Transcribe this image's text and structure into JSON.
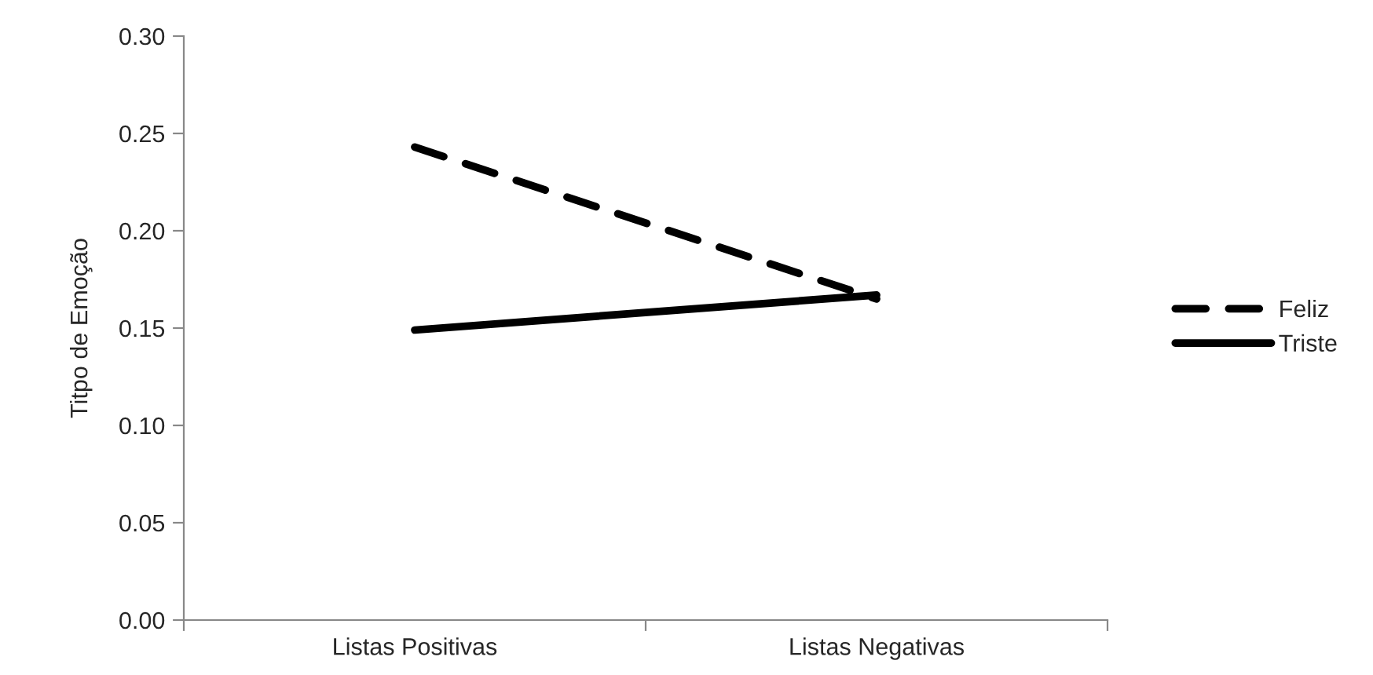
{
  "chart_data": {
    "type": "line",
    "ylabel": "Titpo de Emoção",
    "categories": [
      "Listas Positivas",
      "Listas Negativas"
    ],
    "series": [
      {
        "name": "Feliz",
        "color": "#000000",
        "values": [
          0.243,
          0.165
        ],
        "line_style": "dashed"
      },
      {
        "name": "Triste",
        "color": "#000000",
        "values": [
          0.149,
          0.167
        ],
        "line_style": "solid"
      }
    ],
    "ylim": [
      0,
      0.3
    ],
    "yticks": [
      {
        "value": 0,
        "label": "0.00"
      },
      {
        "value": 0.05,
        "label": "0.05"
      },
      {
        "value": 0.1,
        "label": "0.10"
      },
      {
        "value": 0.15,
        "label": "0.15"
      },
      {
        "value": 0.2,
        "label": "0.20"
      },
      {
        "value": 0.25,
        "label": "0.25"
      },
      {
        "value": 0.3,
        "label": "0.30"
      }
    ],
    "grid": false,
    "legend": "right",
    "marker": "none"
  }
}
